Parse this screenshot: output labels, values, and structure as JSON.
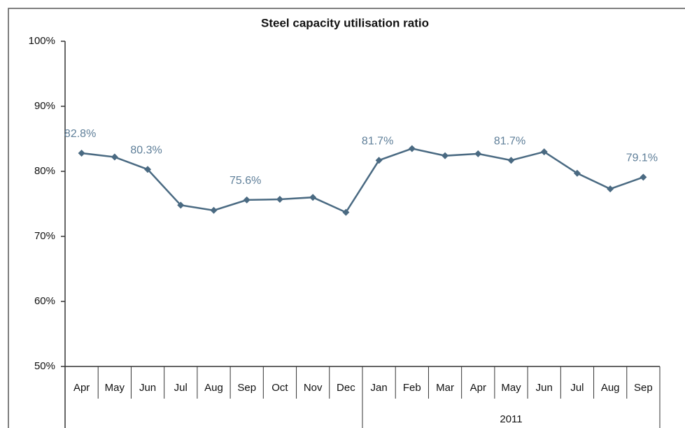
{
  "chart_data": {
    "type": "line",
    "title": "Steel capacity utilisation ratio",
    "groups": [
      {
        "categories": [
          "Apr",
          "May",
          "Jun",
          "Jul",
          "Aug",
          "Sep",
          "Oct",
          "Nov",
          "Dec"
        ]
      },
      {
        "label": "2011",
        "categories": [
          "Jan",
          "Feb",
          "Mar",
          "Apr",
          "May",
          "Jun",
          "Jul",
          "Aug",
          "Sep"
        ]
      }
    ],
    "series": [
      {
        "name": "Steel capacity utilisation ratio",
        "color": "#4a6a82",
        "values": [
          82.8,
          82.2,
          80.3,
          74.8,
          74.0,
          75.6,
          75.7,
          76.0,
          73.7,
          81.7,
          83.5,
          82.4,
          82.7,
          81.7,
          83.0,
          79.7,
          77.3,
          79.1
        ],
        "value_labels": [
          "82.8%",
          null,
          "80.3%",
          null,
          null,
          "75.6%",
          null,
          null,
          null,
          "81.7%",
          null,
          null,
          null,
          "81.7%",
          null,
          null,
          null,
          "79.1%"
        ]
      }
    ],
    "ylim": [
      50,
      100
    ],
    "yticks": [
      {
        "value": 50,
        "label": "50%"
      },
      {
        "value": 60,
        "label": "60%"
      },
      {
        "value": 70,
        "label": "70%"
      },
      {
        "value": 80,
        "label": "80%"
      },
      {
        "value": 90,
        "label": "90%"
      },
      {
        "value": 100,
        "label": "100%"
      }
    ]
  }
}
